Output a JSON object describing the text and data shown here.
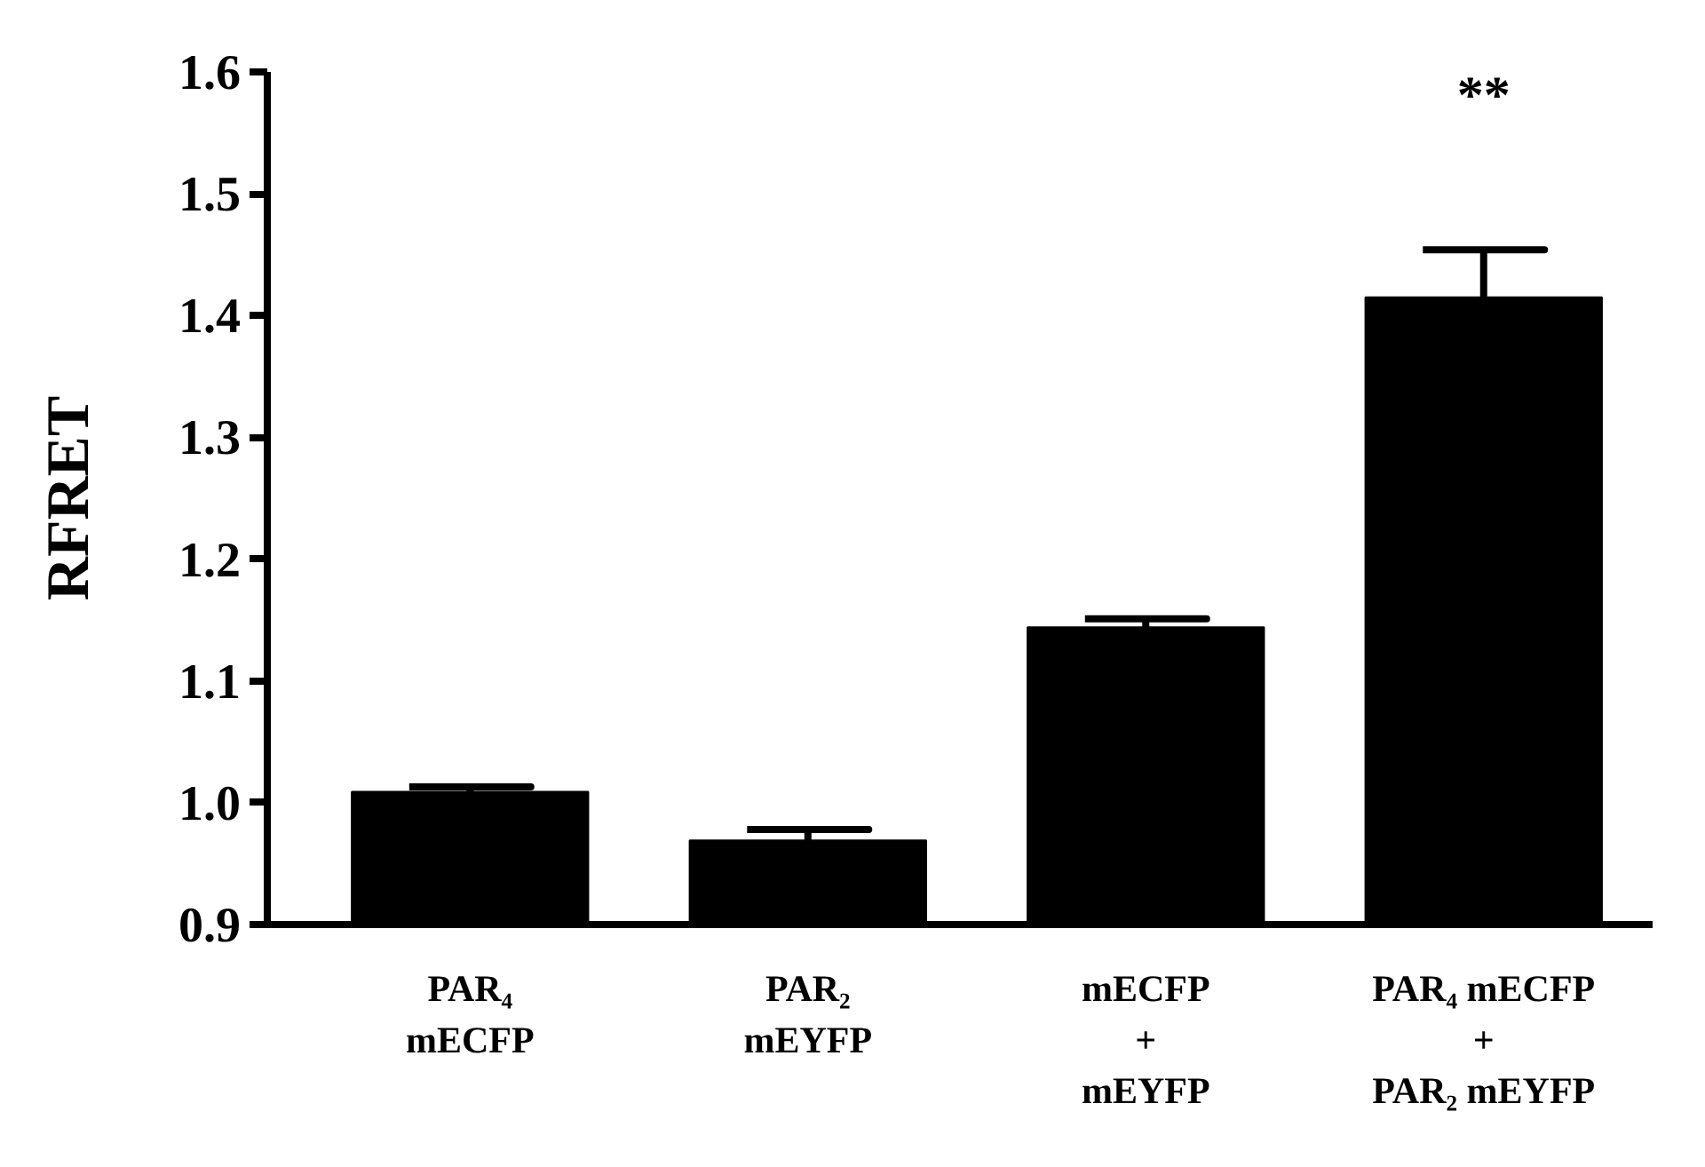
{
  "chart_data": {
    "type": "bar",
    "ylabel": "RFRET",
    "categories": [
      "PAR₄\nmECFP",
      "PAR₂\nmEYFP",
      "mECFP\n+\nmEYFP",
      "PAR₄ mECFP\n+\nPAR₂ mEYFP"
    ],
    "values": [
      1.009,
      0.969,
      1.144,
      1.415
    ],
    "errors": [
      0.004,
      0.009,
      0.007,
      0.039
    ],
    "color": "#000000",
    "ylim": [
      0.9,
      1.6
    ],
    "yticks": [
      {
        "value": 0.9,
        "label": "0.9"
      },
      {
        "value": 1.0,
        "label": "1.0"
      },
      {
        "value": 1.1,
        "label": "1.1"
      },
      {
        "value": 1.2,
        "label": "1.2"
      },
      {
        "value": 1.3,
        "label": "1.3"
      },
      {
        "value": 1.4,
        "label": "1.4"
      },
      {
        "value": 1.5,
        "label": "1.5"
      },
      {
        "value": 1.6,
        "label": "1.6"
      }
    ],
    "annotations": [
      "**"
    ],
    "grid": false
  }
}
